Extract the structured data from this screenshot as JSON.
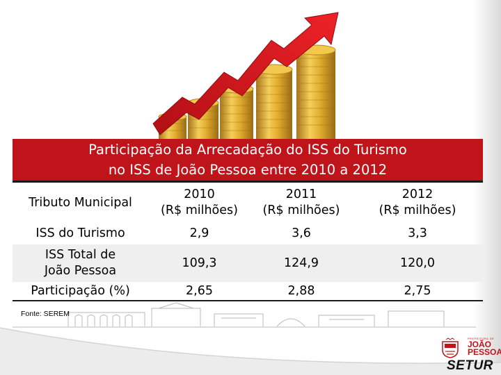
{
  "title": {
    "line1": "Participação da Arrecadação do ISS do Turismo",
    "line2": "no ISS de João Pessoa entre 2010 a 2012"
  },
  "table": {
    "headers": [
      {
        "line1": "Tributo Municipal",
        "line2": ""
      },
      {
        "line1": "2010",
        "line2": "(R$ milhões)"
      },
      {
        "line1": "2011",
        "line2": "(R$ milhões)"
      },
      {
        "line1": "2012",
        "line2": "(R$ milhões)"
      }
    ],
    "rows": [
      {
        "label_line1": "ISS do Turismo",
        "label_line2": "",
        "values": [
          "2,9",
          "3,6",
          "3,3"
        ]
      },
      {
        "label_line1": "ISS Total de",
        "label_line2": "João Pessoa",
        "values": [
          "109,3",
          "124,9",
          "120,0"
        ]
      },
      {
        "label_line1": "Participação (%)",
        "label_line2": "",
        "values": [
          "2,65",
          "2,88",
          "2,75"
        ]
      }
    ]
  },
  "source": "Fonte: SEREM",
  "logo": {
    "prefeitura": "PREFEITURA DE",
    "city_line1": "JOÃO",
    "city_line2": "PESSOA",
    "setur": "SETUR"
  },
  "colors": {
    "title_band": "#c0141b",
    "arrow": "#d8141b",
    "coins": "#e0a92a"
  }
}
